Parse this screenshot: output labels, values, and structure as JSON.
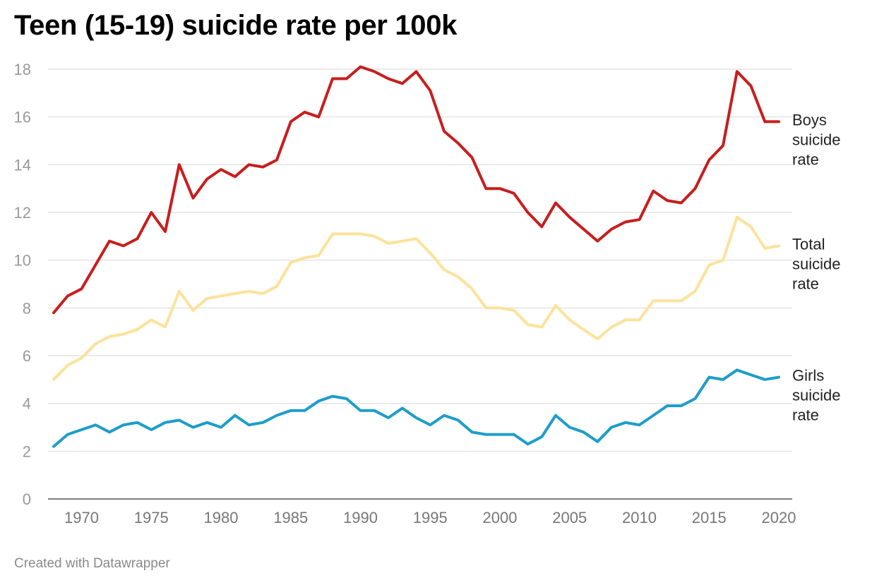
{
  "title": "Teen (15-19) suicide rate per 100k",
  "credit": "Created with Datawrapper",
  "chart_data": {
    "type": "line",
    "title": "Teen (15-19) suicide rate per 100k",
    "xlabel": "",
    "ylabel": "",
    "xlim": [
      1968,
      2020
    ],
    "ylim": [
      0,
      18
    ],
    "yticks": [
      0,
      2,
      4,
      6,
      8,
      10,
      12,
      14,
      16,
      18
    ],
    "xticks": [
      1970,
      1975,
      1980,
      1985,
      1990,
      1995,
      2000,
      2005,
      2010,
      2015,
      2020
    ],
    "grid": true,
    "legend": "direct labels at right",
    "x": [
      1968,
      1969,
      1970,
      1971,
      1972,
      1973,
      1974,
      1975,
      1976,
      1977,
      1978,
      1979,
      1980,
      1981,
      1982,
      1983,
      1984,
      1985,
      1986,
      1987,
      1988,
      1989,
      1990,
      1991,
      1992,
      1993,
      1994,
      1995,
      1996,
      1997,
      1998,
      1999,
      2000,
      2001,
      2002,
      2003,
      2004,
      2005,
      2006,
      2007,
      2008,
      2009,
      2010,
      2011,
      2012,
      2013,
      2014,
      2015,
      2016,
      2017,
      2018,
      2019,
      2020
    ],
    "series": [
      {
        "name": "Boys suicide rate",
        "label_lines": [
          "Boys",
          "suicide",
          "rate"
        ],
        "color": "#c71e1d",
        "values": [
          7.8,
          8.5,
          8.8,
          9.8,
          10.8,
          10.6,
          10.9,
          12.0,
          11.2,
          14.0,
          12.6,
          13.4,
          13.8,
          13.5,
          14.0,
          13.9,
          14.2,
          15.8,
          16.2,
          16.0,
          17.6,
          17.6,
          18.1,
          17.9,
          17.6,
          17.4,
          17.9,
          17.1,
          15.4,
          14.9,
          14.3,
          13.0,
          13.0,
          12.8,
          12.0,
          11.4,
          12.4,
          11.8,
          11.3,
          10.8,
          11.3,
          11.6,
          11.7,
          12.9,
          12.5,
          12.4,
          13.0,
          14.2,
          14.8,
          17.9,
          17.3,
          15.8,
          15.8
        ]
      },
      {
        "name": "Total suicide rate",
        "label_lines": [
          "Total",
          "suicide",
          "rate"
        ],
        "color": "#fce29a",
        "values": [
          5.0,
          5.6,
          5.9,
          6.5,
          6.8,
          6.9,
          7.1,
          7.5,
          7.2,
          8.7,
          7.9,
          8.4,
          8.5,
          8.6,
          8.7,
          8.6,
          8.9,
          9.9,
          10.1,
          10.2,
          11.1,
          11.1,
          11.1,
          11.0,
          10.7,
          10.8,
          10.9,
          10.3,
          9.6,
          9.3,
          8.8,
          8.0,
          8.0,
          7.9,
          7.3,
          7.2,
          8.1,
          7.5,
          7.1,
          6.7,
          7.2,
          7.5,
          7.5,
          8.3,
          8.3,
          8.3,
          8.7,
          9.8,
          10.0,
          11.8,
          11.4,
          10.5,
          10.6
        ]
      },
      {
        "name": "Girls suicide rate",
        "label_lines": [
          "Girls",
          "suicide",
          "rate"
        ],
        "color": "#1d9dc9",
        "values": [
          2.2,
          2.7,
          2.9,
          3.1,
          2.8,
          3.1,
          3.2,
          2.9,
          3.2,
          3.3,
          3.0,
          3.2,
          3.0,
          3.5,
          3.1,
          3.2,
          3.5,
          3.7,
          3.7,
          4.1,
          4.3,
          4.2,
          3.7,
          3.7,
          3.4,
          3.8,
          3.4,
          3.1,
          3.5,
          3.3,
          2.8,
          2.7,
          2.7,
          2.7,
          2.3,
          2.6,
          3.5,
          3.0,
          2.8,
          2.4,
          3.0,
          3.2,
          3.1,
          3.5,
          3.9,
          3.9,
          4.2,
          5.1,
          5.0,
          5.4,
          5.2,
          5.0,
          5.1
        ]
      }
    ]
  }
}
